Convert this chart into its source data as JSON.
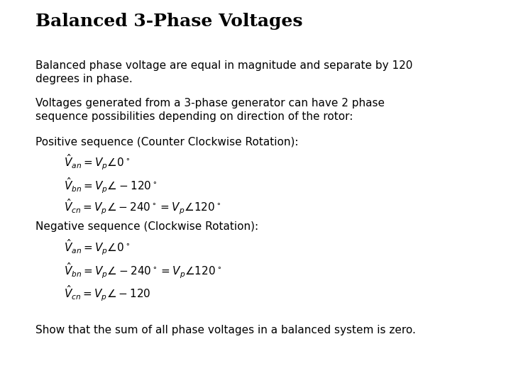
{
  "title": "Balanced 3-Phase Voltages",
  "background_color": "#ffffff",
  "text_color": "#000000",
  "title_fontsize": 18,
  "body_fontsize": 11,
  "eq_fontsize": 11,
  "paragraphs": [
    "Balanced phase voltage are equal in magnitude and separate by 120\ndegrees in phase.",
    "Voltages generated from a 3-phase generator can have 2 phase\nsequence possibilities depending on direction of the rotor:",
    "Positive sequence (Counter Clockwise Rotation):"
  ],
  "pos_equations": [
    "$\\hat{V}_{an} = V_p\\angle 0^\\circ$",
    "$\\hat{V}_{bn} = V_p\\angle -120^\\circ$",
    "$\\hat{V}_{cn} = V_p\\angle -240^\\circ = V_p\\angle 120^\\circ$"
  ],
  "neg_label": "Negative sequence (Clockwise Rotation):",
  "neg_equations": [
    "$\\hat{V}_{an} = V_p\\angle 0^\\circ$",
    "$\\hat{V}_{bn} = V_p\\angle -240^\\circ = V_p\\angle 120^\\circ$",
    "$\\hat{V}_{cn} = V_p\\angle -120$"
  ],
  "footer": "Show that the sum of all phase voltages in a balanced system is zero."
}
